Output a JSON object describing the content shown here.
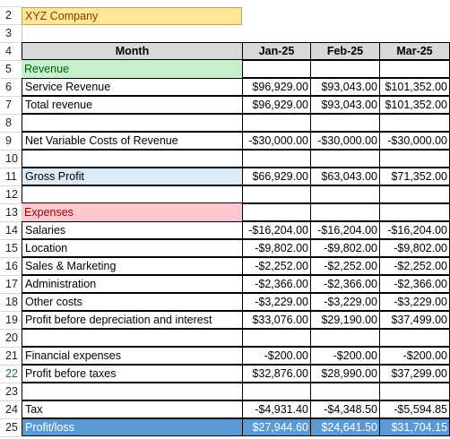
{
  "sheet": {
    "company_name": "XYZ Company",
    "headers": {
      "month": "Month",
      "c1": "Jan-25",
      "c2": "Feb-25",
      "c3": "Mar-25"
    },
    "rows": [
      {
        "num": "2",
        "label": "XYZ Company",
        "style": "company",
        "vals": null
      },
      {
        "num": "3",
        "label": "",
        "style": "blank-nb",
        "vals": null
      },
      {
        "num": "4",
        "label": "Month",
        "style": "header",
        "vals": null
      },
      {
        "num": "5",
        "label": "Revenue",
        "style": "rev",
        "vals": [
          "",
          "",
          ""
        ]
      },
      {
        "num": "6",
        "label": "Service Revenue",
        "style": "data",
        "vals": [
          "$96,929.00",
          "$93,043.00",
          "$101,352.00"
        ]
      },
      {
        "num": "7",
        "label": "Total revenue",
        "style": "data",
        "vals": [
          "$96,929.00",
          "$93,043.00",
          "$101,352.00"
        ]
      },
      {
        "num": "8",
        "label": "",
        "style": "data",
        "vals": [
          "",
          "",
          ""
        ]
      },
      {
        "num": "9",
        "label": "Net Variable Costs of Revenue",
        "style": "data",
        "vals": [
          "-$30,000.00",
          "-$30,000.00",
          "-$30,000.00"
        ]
      },
      {
        "num": "10",
        "label": "",
        "style": "data",
        "vals": [
          "",
          "",
          ""
        ]
      },
      {
        "num": "11",
        "label": "Gross Profit",
        "style": "gross",
        "vals": [
          "$66,929.00",
          "$63,043.00",
          "$71,352.00"
        ]
      },
      {
        "num": "12",
        "label": "",
        "style": "data",
        "vals": [
          "",
          "",
          ""
        ]
      },
      {
        "num": "13",
        "label": "Expenses",
        "style": "exp",
        "vals": [
          "",
          "",
          ""
        ]
      },
      {
        "num": "14",
        "label": "Salaries",
        "style": "data",
        "vals": [
          "-$16,204.00",
          "-$16,204.00",
          "-$16,204.00"
        ]
      },
      {
        "num": "15",
        "label": "Location",
        "style": "data",
        "vals": [
          "-$9,802.00",
          "-$9,802.00",
          "-$9,802.00"
        ]
      },
      {
        "num": "16",
        "label": "Sales & Marketing",
        "style": "data",
        "vals": [
          "-$2,252.00",
          "-$2,252.00",
          "-$2,252.00"
        ]
      },
      {
        "num": "17",
        "label": "Administration",
        "style": "data",
        "vals": [
          "-$2,366.00",
          "-$2,366.00",
          "-$2,366.00"
        ]
      },
      {
        "num": "18",
        "label": "Other costs",
        "style": "data",
        "vals": [
          "-$3,229.00",
          "-$3,229.00",
          "-$3,229.00"
        ]
      },
      {
        "num": "19",
        "label": "Profit before depreciation and interest",
        "style": "data",
        "vals": [
          "$33,076.00",
          "$29,190.00",
          "$37,499.00"
        ]
      },
      {
        "num": "20",
        "label": "",
        "style": "data",
        "vals": [
          "",
          "",
          ""
        ]
      },
      {
        "num": "21",
        "label": "Financial expenses",
        "style": "data",
        "vals": [
          "-$200.00",
          "-$200.00",
          "-$200.00"
        ]
      },
      {
        "num": "22",
        "label": "Profit before taxes",
        "style": "data",
        "vals": [
          "$32,876.00",
          "$28,990.00",
          "$37,299.00"
        ]
      },
      {
        "num": "23",
        "label": "",
        "style": "data",
        "vals": [
          "",
          "",
          ""
        ]
      },
      {
        "num": "24",
        "label": "Tax",
        "style": "data",
        "vals": [
          "-$4,931.40",
          "-$4,348.50",
          "-$5,594.85"
        ]
      },
      {
        "num": "25",
        "label": "Profit/loss",
        "style": "profit",
        "vals": [
          "$27,944.60",
          "$24,641.50",
          "$31,704.15"
        ]
      }
    ],
    "selected_row": "22"
  }
}
